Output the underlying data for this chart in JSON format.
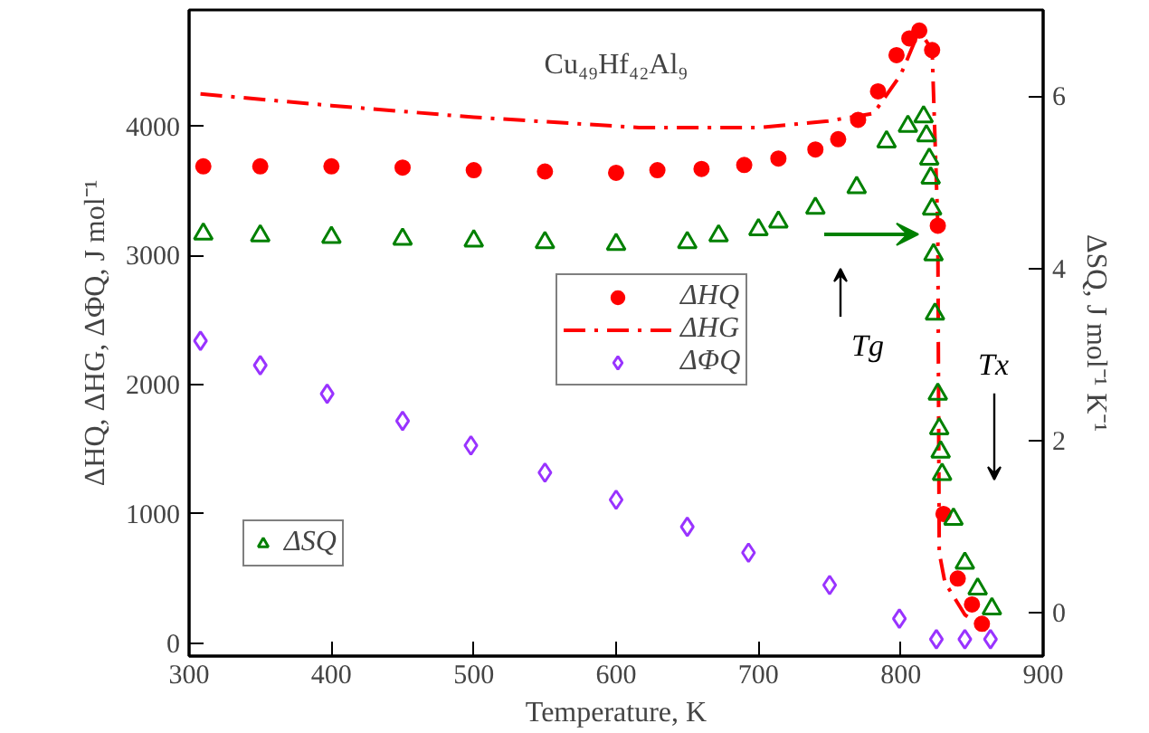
{
  "chart_data": {
    "type": "scatter",
    "title": "Cu₄₉Hf₄₂Al₉",
    "xlabel": "Temperature, K",
    "ylabel": "ΔHQ, ΔHG, ΔΦQ, J mol⁻¹",
    "y2label": "ΔSQ, J mol⁻¹ K⁻¹",
    "xlim": [
      300,
      900
    ],
    "xticks": [
      300,
      400,
      500,
      600,
      700,
      800,
      900
    ],
    "ylim": [
      -100,
      4900
    ],
    "yticks": [
      0,
      1000,
      2000,
      3000,
      4000
    ],
    "y2lim": [
      -0.5,
      7
    ],
    "y2ticks": [
      0,
      2,
      4,
      6
    ],
    "grid": false,
    "legend": "center",
    "series": [
      {
        "name": "ΔHQ",
        "marker": "circle",
        "color": "#ff0000",
        "x": [
          310,
          350,
          400,
          450,
          500,
          550,
          600,
          629,
          660,
          690,
          714,
          740,
          756,
          770,
          784,
          797,
          806,
          813,
          822,
          826,
          830,
          840,
          850,
          857
        ],
        "values": [
          3690,
          3690,
          3690,
          3680,
          3660,
          3650,
          3640,
          3660,
          3670,
          3700,
          3750,
          3820,
          3900,
          4050,
          4270,
          4550,
          4680,
          4740,
          4590,
          3230,
          1000,
          500,
          300,
          150
        ]
      },
      {
        "name": "ΔHG",
        "type": "line",
        "line_style": "dashdot",
        "color": "#ff0000",
        "x": [
          308,
          400,
          500,
          616,
          700,
          749,
          781,
          800,
          813,
          822,
          826,
          827,
          831,
          845,
          860
        ],
        "values": [
          4250,
          4160,
          4070,
          3990,
          3990,
          4040,
          4100,
          4400,
          4740,
          4590,
          3230,
          700,
          470,
          220,
          100
        ]
      },
      {
        "name": "ΔΦQ",
        "marker": "diamond",
        "color": "#9933ff",
        "x": [
          308,
          350,
          397,
          450,
          498,
          550,
          600,
          650,
          693,
          750,
          799,
          825,
          845,
          863
        ],
        "values": [
          2340,
          2150,
          1930,
          1720,
          1530,
          1320,
          1110,
          900,
          700,
          450,
          190,
          30,
          30,
          30
        ]
      },
      {
        "name": "ΔSQ",
        "marker": "triangle",
        "color": "#008000",
        "axis": "y2",
        "x": [
          310,
          350,
          400,
          450,
          500,
          550,
          600,
          650,
          672,
          700,
          714,
          740,
          769,
          790,
          805,
          816,
          818,
          820,
          821,
          822,
          823,
          824,
          826,
          827,
          828,
          829,
          837,
          845,
          854,
          864
        ],
        "values": [
          4.4,
          4.38,
          4.36,
          4.34,
          4.32,
          4.3,
          4.28,
          4.3,
          4.38,
          4.45,
          4.54,
          4.7,
          4.94,
          5.47,
          5.65,
          5.76,
          5.54,
          5.27,
          5.05,
          4.69,
          4.16,
          3.47,
          2.54,
          2.14,
          1.87,
          1.61,
          1.09,
          0.58,
          0.28,
          0.05
        ]
      }
    ],
    "annotations": [
      "Tg",
      "Tx"
    ]
  }
}
